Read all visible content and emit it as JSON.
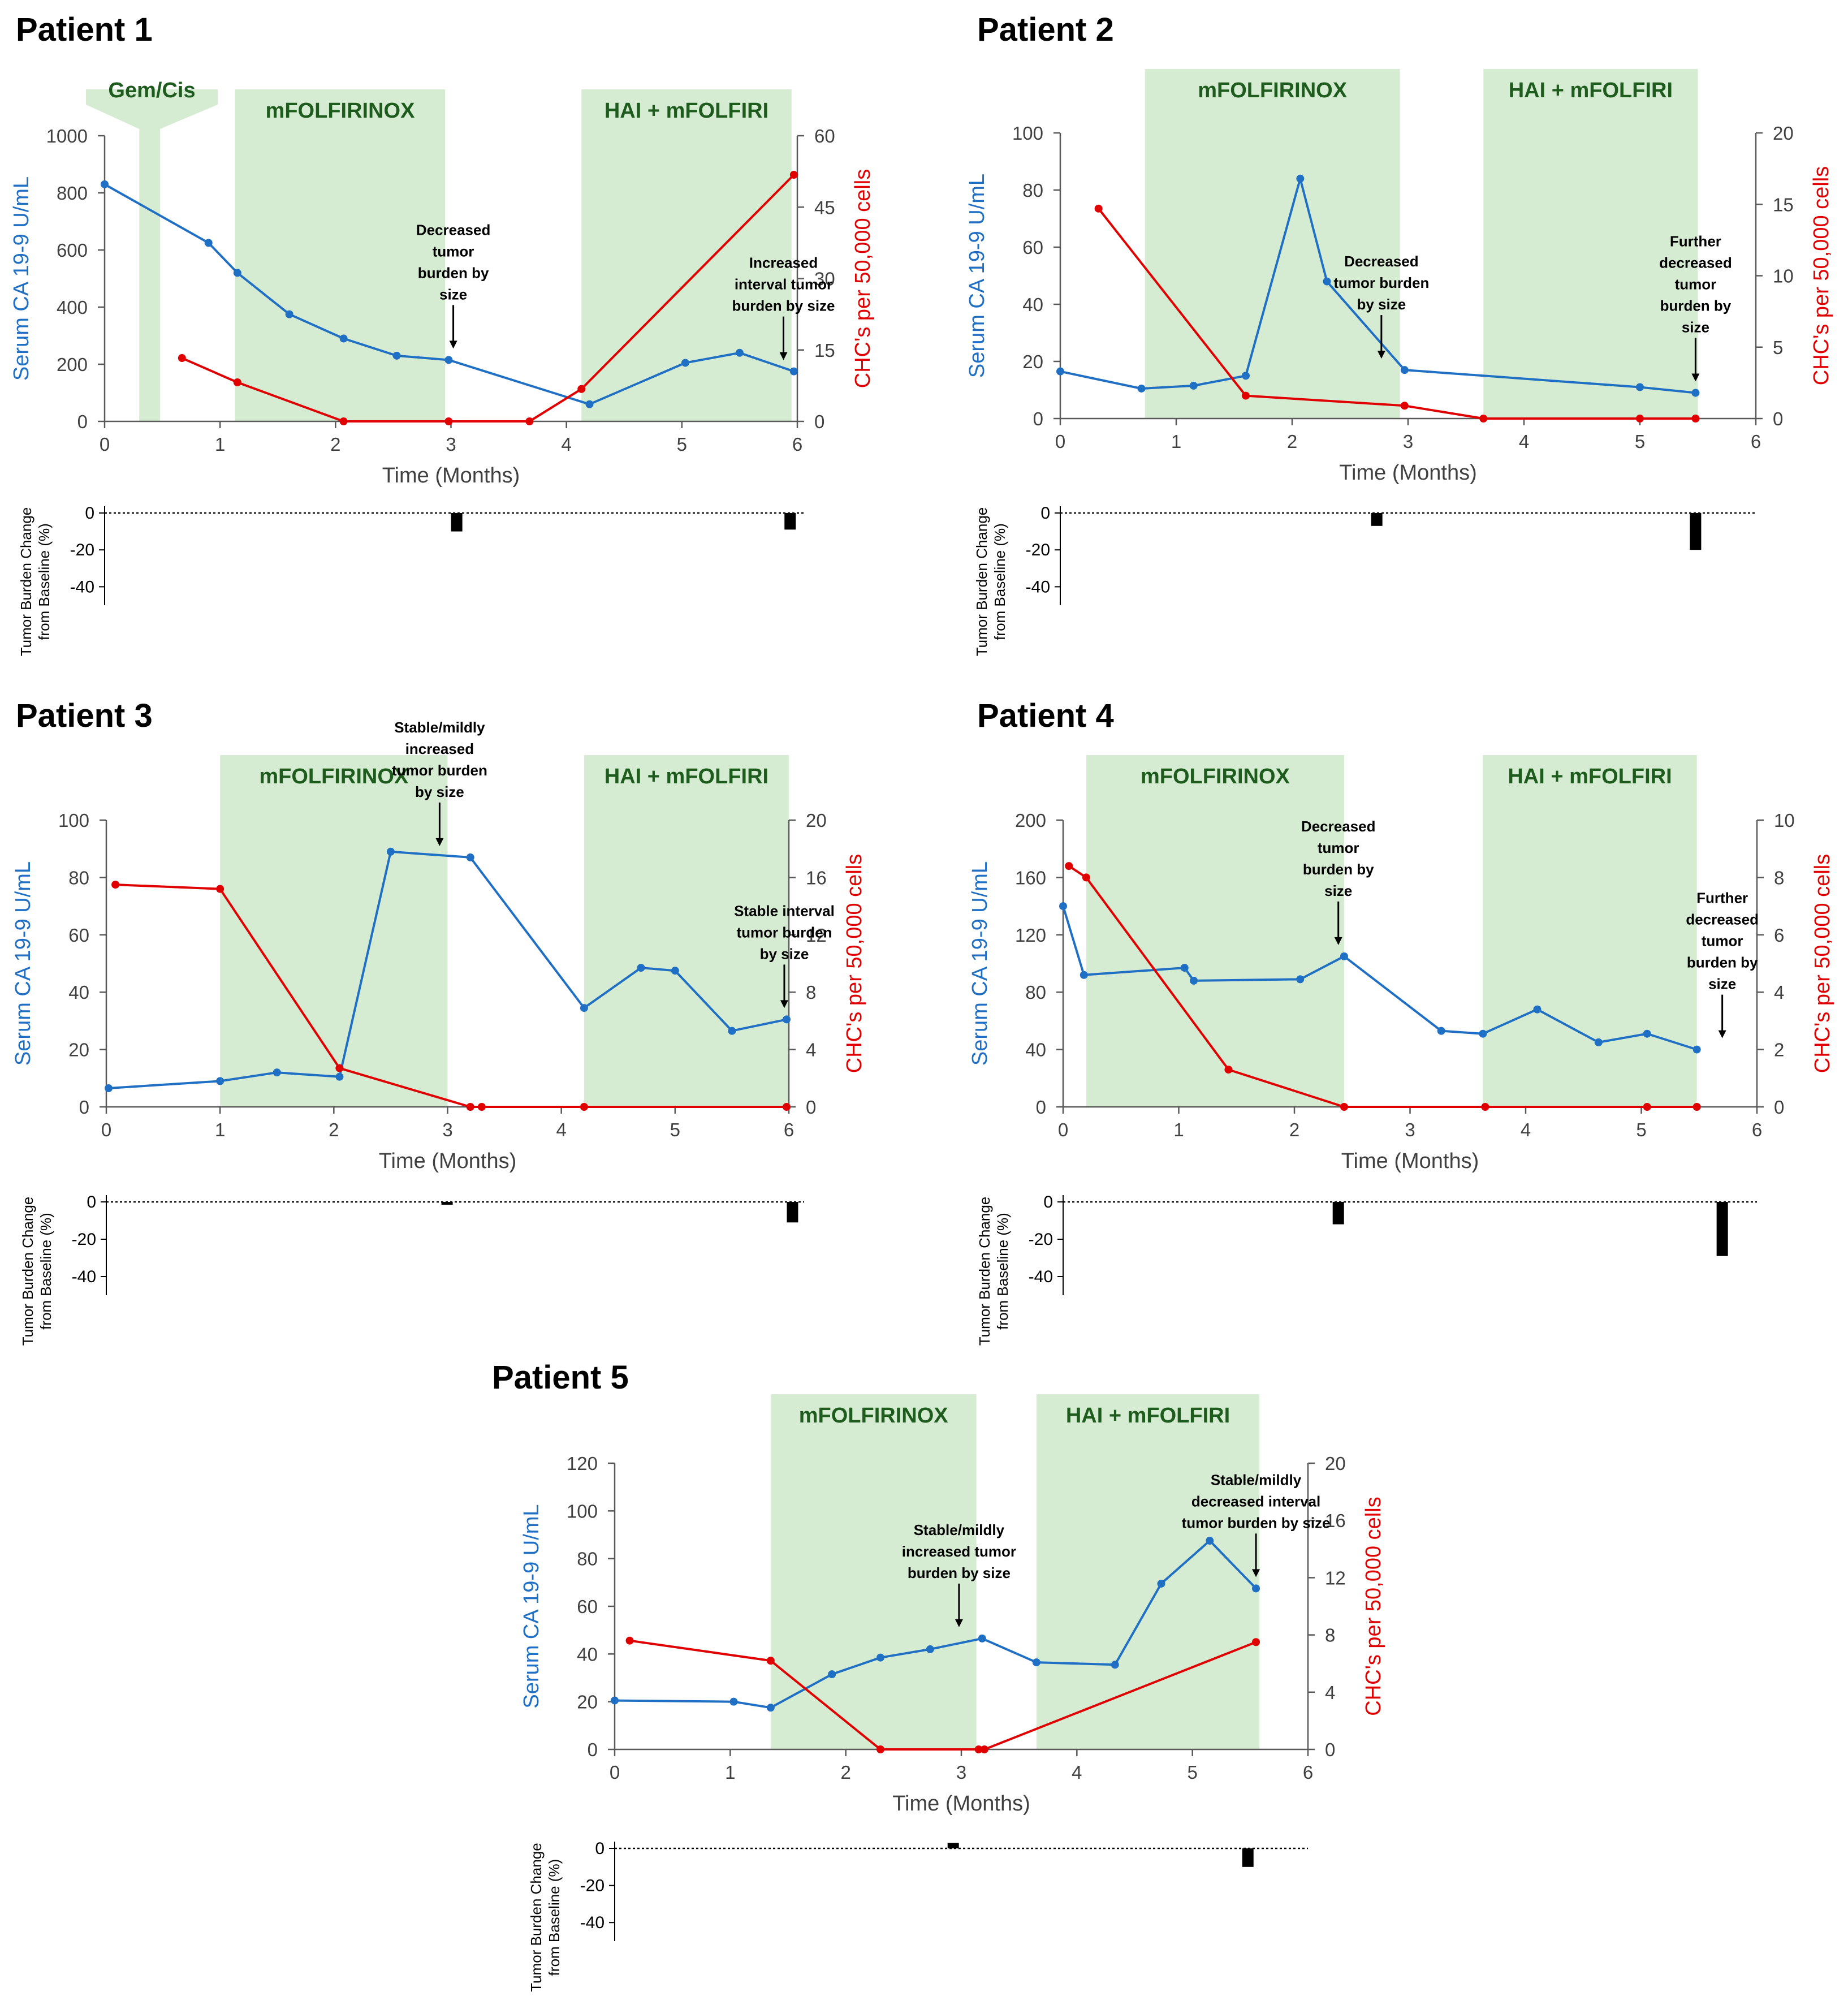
{
  "colors": {
    "ca199": "#1f6fc5",
    "chc": "#e00000",
    "phase_fill": "#d6ecd2",
    "phase_text": "#1e5c1e",
    "axis": "#595959",
    "bar": "#000000"
  },
  "x_axis_title": "Time (Months)",
  "left_axis_title": "Serum CA 19-9 U/mL",
  "right_axis_title": "CHC's per 50,000 cells",
  "bar_axis_title_lines": [
    "Tumor Burden Change",
    "from Baseline (%)"
  ],
  "chart_data": [
    {
      "type": "line",
      "title": "Patient 1",
      "xlabel": "Time (Months)",
      "xlim": [
        0,
        6
      ],
      "xticks": [
        0,
        1,
        2,
        3,
        4,
        5,
        6
      ],
      "ylabel_left": "Serum CA 19-9 U/mL",
      "ylim_left": [
        0,
        1000
      ],
      "yticks_left": [
        0,
        200,
        400,
        600,
        800,
        1000
      ],
      "ylabel_right": "CHC's per 50,000 cells",
      "ylim_right": [
        0,
        60
      ],
      "yticks_right": [
        0,
        15,
        30,
        45,
        60
      ],
      "phases": [
        {
          "label": "Gem/Cis",
          "start": 0.3,
          "end": 0.48,
          "callout": true
        },
        {
          "label": "mFOLFIRINOX",
          "start": 1.13,
          "end": 2.95
        },
        {
          "label": "HAI + mFOLFIRI",
          "start": 4.13,
          "end": 5.95
        }
      ],
      "series": [
        {
          "name": "Serum CA 19-9",
          "axis": "left",
          "x": [
            0,
            0.9,
            1.15,
            1.6,
            2.07,
            2.53,
            2.98,
            4.2,
            5.03,
            5.5,
            5.97
          ],
          "y": [
            830,
            625,
            520,
            375,
            290,
            230,
            215,
            60,
            205,
            240,
            175
          ]
        },
        {
          "name": "CHCs",
          "axis": "right",
          "x": [
            0.67,
            1.15,
            2.07,
            2.98,
            3.68,
            4.13,
            5.97
          ],
          "y": [
            13.3,
            8.2,
            0,
            0,
            0,
            6.8,
            51.8
          ]
        }
      ],
      "tumor_burden": {
        "ylim": [
          -50,
          0
        ],
        "yticks": [
          0,
          -20,
          -40
        ],
        "bars": [
          {
            "x": 3.02,
            "value": -10
          },
          {
            "x": 5.88,
            "value": -9
          }
        ]
      },
      "annotations": [
        {
          "lines": [
            "Decreased",
            "tumor",
            "burden by",
            "size"
          ],
          "x": 3.02
        },
        {
          "lines": [
            "Increased",
            "interval tumor",
            "burden by size"
          ],
          "x": 5.88
        }
      ]
    },
    {
      "type": "line",
      "title": "Patient 2",
      "xlabel": "Time (Months)",
      "xlim": [
        0,
        6
      ],
      "xticks": [
        0,
        1,
        2,
        3,
        4,
        5,
        6
      ],
      "ylabel_left": "Serum CA 19-9 U/mL",
      "ylim_left": [
        0,
        100
      ],
      "yticks_left": [
        0,
        20,
        40,
        60,
        80,
        100
      ],
      "ylabel_right": "CHC's per 50,000 cells",
      "ylim_right": [
        0,
        20
      ],
      "yticks_right": [
        0,
        5,
        10,
        15,
        20
      ],
      "phases": [
        {
          "label": "mFOLFIRINOX",
          "start": 0.73,
          "end": 2.93
        },
        {
          "label": "HAI + mFOLFIRI",
          "start": 3.65,
          "end": 5.5
        }
      ],
      "series": [
        {
          "name": "Serum CA 19-9",
          "axis": "left",
          "x": [
            0,
            0.7,
            1.15,
            1.6,
            2.07,
            2.3,
            2.97,
            5.0,
            5.48
          ],
          "y": [
            16.5,
            10.5,
            11.5,
            15,
            84,
            48,
            17,
            11,
            9
          ]
        },
        {
          "name": "CHCs",
          "axis": "right",
          "x": [
            0.33,
            1.6,
            2.97,
            3.65,
            5.0,
            5.48
          ],
          "y": [
            14.7,
            1.6,
            0.9,
            0,
            0,
            0
          ]
        }
      ],
      "tumor_burden": {
        "ylim": [
          -50,
          0
        ],
        "yticks": [
          0,
          -20,
          -40
        ],
        "bars": [
          {
            "x": 2.73,
            "value": -7
          },
          {
            "x": 5.48,
            "value": -20
          }
        ]
      },
      "annotations": [
        {
          "lines": [
            "Decreased",
            "tumor burden",
            "by size"
          ],
          "x": 2.77
        },
        {
          "lines": [
            "Further",
            "decreased",
            "tumor",
            "burden by",
            "size"
          ],
          "x": 5.48
        }
      ]
    },
    {
      "type": "line",
      "title": "Patient 3",
      "xlabel": "Time (Months)",
      "xlim": [
        0,
        6
      ],
      "xticks": [
        0,
        1,
        2,
        3,
        4,
        5,
        6
      ],
      "ylabel_left": "Serum CA 19-9 U/mL",
      "ylim_left": [
        0,
        100
      ],
      "yticks_left": [
        0,
        20,
        40,
        60,
        80,
        100
      ],
      "ylabel_right": "CHC's per 50,000 cells",
      "ylim_right": [
        0,
        20
      ],
      "yticks_right": [
        0,
        4,
        8,
        12,
        16,
        20
      ],
      "phases": [
        {
          "label": "mFOLFIRINOX",
          "start": 1.0,
          "end": 3.0
        },
        {
          "label": "HAI + mFOLFIRI",
          "start": 4.2,
          "end": 6.0
        }
      ],
      "series": [
        {
          "name": "Serum CA 19-9",
          "axis": "left",
          "x": [
            0.02,
            1.0,
            1.5,
            2.05,
            2.5,
            3.2,
            4.2,
            4.7,
            5.0,
            5.5,
            5.98
          ],
          "y": [
            6.5,
            9,
            12,
            10.5,
            89,
            87,
            34.5,
            48.5,
            47.5,
            26.5,
            30.5
          ]
        },
        {
          "name": "CHCs",
          "axis": "right",
          "x": [
            0.08,
            1.0,
            2.05,
            3.2,
            3.3,
            4.2,
            5.98
          ],
          "y": [
            15.5,
            15.2,
            2.7,
            0,
            0,
            0,
            0
          ]
        }
      ],
      "tumor_burden": {
        "ylim": [
          -50,
          0
        ],
        "yticks": [
          0,
          -20,
          -40
        ],
        "bars": [
          {
            "x": 2.93,
            "value": -1.5
          },
          {
            "x": 5.9,
            "value": -11
          }
        ]
      },
      "annotations": [
        {
          "lines": [
            "Stable/mildly",
            "increased",
            "tumor burden",
            "by size"
          ],
          "x": 2.93
        },
        {
          "lines": [
            "Stable interval",
            "tumor burden",
            "by size"
          ],
          "x": 5.96
        }
      ]
    },
    {
      "type": "line",
      "title": "Patient 4",
      "xlabel": "Time (Months)",
      "xlim": [
        0,
        6
      ],
      "xticks": [
        0,
        1,
        2,
        3,
        4,
        5,
        6
      ],
      "ylabel_left": "Serum CA 19-9 U/mL",
      "ylim_left": [
        0,
        200
      ],
      "yticks_left": [
        0,
        40,
        80,
        120,
        160,
        200
      ],
      "ylabel_right": "CHC's per 50,000 cells",
      "ylim_right": [
        0,
        10
      ],
      "yticks_right": [
        0,
        2,
        4,
        6,
        8,
        10
      ],
      "phases": [
        {
          "label": "mFOLFIRINOX",
          "start": 0.2,
          "end": 2.43
        },
        {
          "label": "HAI + mFOLFIRI",
          "start": 3.63,
          "end": 5.48
        }
      ],
      "series": [
        {
          "name": "Serum CA 19-9",
          "axis": "left",
          "x": [
            0.0,
            0.18,
            1.05,
            1.13,
            2.05,
            2.43,
            3.27,
            3.63,
            4.1,
            4.63,
            5.05,
            5.48
          ],
          "y": [
            140,
            92,
            97,
            88,
            89,
            105,
            53,
            51,
            68,
            45,
            51,
            40
          ]
        },
        {
          "name": "CHCs",
          "axis": "right",
          "x": [
            0.05,
            0.2,
            1.43,
            2.43,
            3.65,
            5.05,
            5.48
          ],
          "y": [
            8.4,
            8.0,
            1.3,
            0,
            0,
            0,
            0
          ]
        }
      ],
      "tumor_burden": {
        "ylim": [
          -50,
          0
        ],
        "yticks": [
          0,
          -20,
          -40
        ],
        "bars": [
          {
            "x": 2.38,
            "value": -12
          },
          {
            "x": 5.7,
            "value": -29
          }
        ]
      },
      "annotations": [
        {
          "lines": [
            "Decreased",
            "tumor",
            "burden by",
            "size"
          ],
          "x": 2.38
        },
        {
          "lines": [
            "Further",
            "decreased",
            "tumor",
            "burden by",
            "size"
          ],
          "x": 5.7
        }
      ]
    },
    {
      "type": "line",
      "title": "Patient 5",
      "xlabel": "Time (Months)",
      "xlim": [
        0,
        6
      ],
      "xticks": [
        0,
        1,
        2,
        3,
        4,
        5,
        6
      ],
      "ylabel_left": "Serum CA 19-9 U/mL",
      "ylim_left": [
        0,
        120
      ],
      "yticks_left": [
        0,
        20,
        40,
        60,
        80,
        100,
        120
      ],
      "ylabel_right": "CHC's per 50,000 cells",
      "ylim_right": [
        0,
        20
      ],
      "yticks_right": [
        0,
        4,
        8,
        12,
        16,
        20
      ],
      "phases": [
        {
          "label": "mFOLFIRINOX",
          "start": 1.35,
          "end": 3.13
        },
        {
          "label": "HAI + mFOLFIRI",
          "start": 3.65,
          "end": 5.58
        }
      ],
      "series": [
        {
          "name": "Serum CA 19-9",
          "axis": "left",
          "x": [
            0.0,
            1.03,
            1.35,
            1.88,
            2.3,
            2.73,
            3.18,
            3.65,
            4.33,
            4.73,
            5.15,
            5.55
          ],
          "y": [
            20.5,
            20,
            17.5,
            31.5,
            38.5,
            42,
            46.5,
            36.5,
            35.5,
            69.5,
            87.5,
            67.5
          ]
        },
        {
          "name": "CHCs",
          "axis": "right",
          "x": [
            0.13,
            1.35,
            2.3,
            3.15,
            3.2,
            5.55
          ],
          "y": [
            7.6,
            6.2,
            0,
            0,
            0,
            7.5
          ]
        }
      ],
      "tumor_burden": {
        "ylim": [
          -50,
          0
        ],
        "yticks": [
          0,
          -20,
          -40
        ],
        "bars": [
          {
            "x": 2.93,
            "value": 3
          },
          {
            "x": 5.48,
            "value": -10
          }
        ]
      },
      "annotations": [
        {
          "lines": [
            "Stable/mildly",
            "increased tumor",
            "burden by size"
          ],
          "x": 2.98
        },
        {
          "lines": [
            "Stable/mildly",
            "decreased interval",
            "tumor burden by size"
          ],
          "x": 5.55
        }
      ]
    }
  ]
}
